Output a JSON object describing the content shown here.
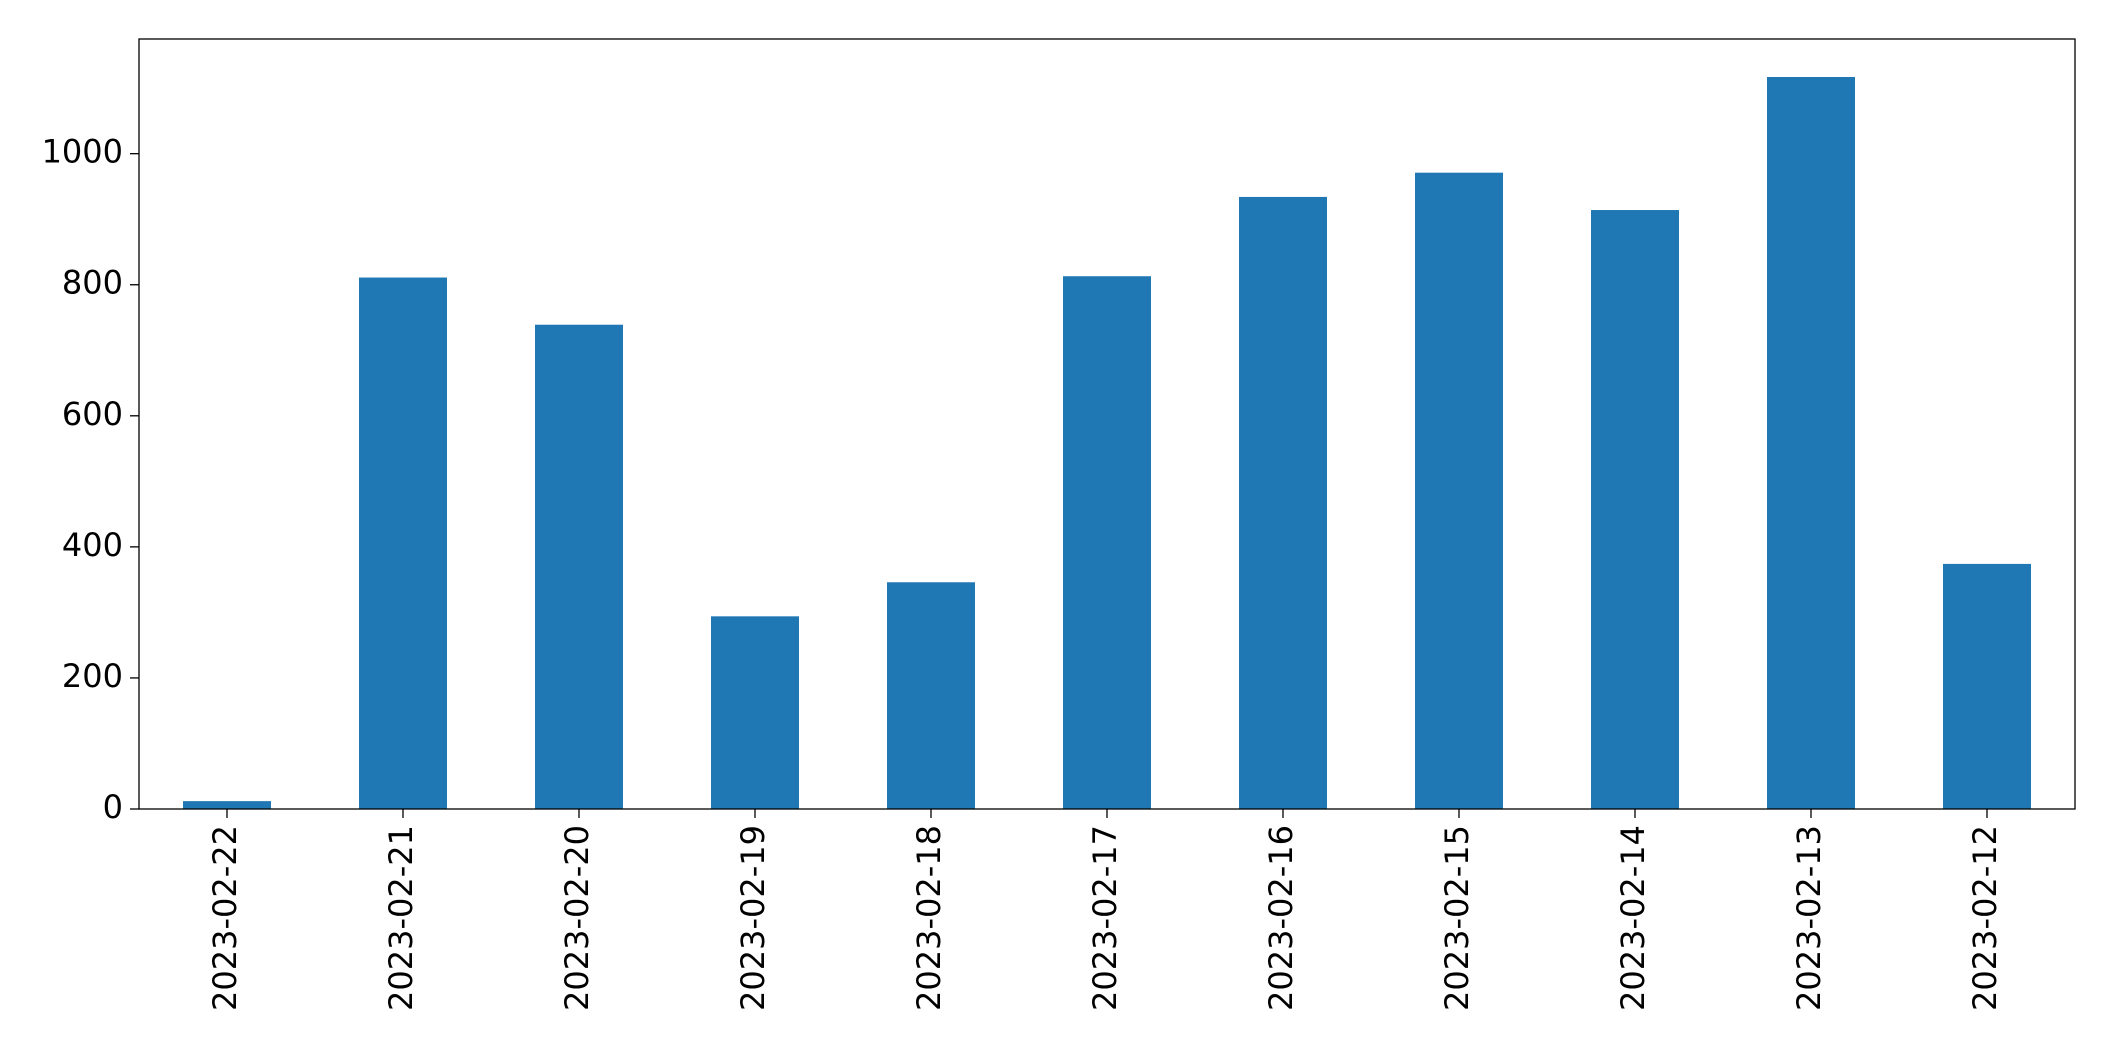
{
  "chart_data": {
    "type": "bar",
    "categories": [
      "2023-02-22",
      "2023-02-21",
      "2023-02-20",
      "2023-02-19",
      "2023-02-18",
      "2023-02-17",
      "2023-02-16",
      "2023-02-15",
      "2023-02-14",
      "2023-02-13",
      "2023-02-12"
    ],
    "values": [
      12,
      811,
      739,
      294,
      346,
      813,
      934,
      971,
      914,
      1117,
      374
    ],
    "color": "#1f77b4",
    "ylim": [
      0,
      1175
    ],
    "yticks": [
      0,
      200,
      400,
      600,
      800,
      1000
    ],
    "grid": false
  }
}
